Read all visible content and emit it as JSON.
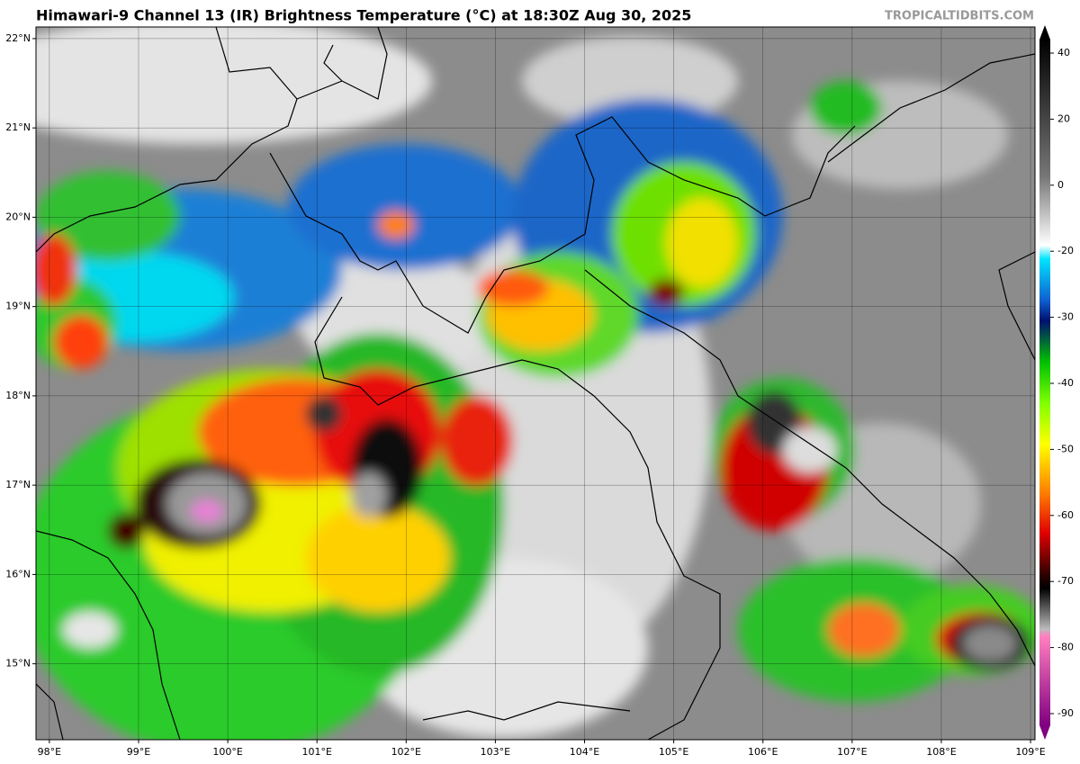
{
  "map": {
    "title": "Himawari-9 Channel 13 (IR) Brightness Temperature (°C) at 18:30Z Aug 30, 2025",
    "credit": "TROPICALTIDBITS.COM",
    "xlim": [
      97.85,
      109.05
    ],
    "ylim": [
      14.15,
      22.13
    ],
    "xticks": [
      {
        "value": 98,
        "label": "98°E"
      },
      {
        "value": 99,
        "label": "99°E"
      },
      {
        "value": 100,
        "label": "100°E"
      },
      {
        "value": 101,
        "label": "101°E"
      },
      {
        "value": 102,
        "label": "102°E"
      },
      {
        "value": 103,
        "label": "103°E"
      },
      {
        "value": 104,
        "label": "104°E"
      },
      {
        "value": 105,
        "label": "105°E"
      },
      {
        "value": 106,
        "label": "106°E"
      },
      {
        "value": 107,
        "label": "107°E"
      },
      {
        "value": 108,
        "label": "108°E"
      },
      {
        "value": 109,
        "label": "109°E"
      }
    ],
    "yticks": [
      {
        "value": 22,
        "label": "22°N"
      },
      {
        "value": 21,
        "label": "21°N"
      },
      {
        "value": 20,
        "label": "20°N"
      },
      {
        "value": 19,
        "label": "19°N"
      },
      {
        "value": 18,
        "label": "18°N"
      },
      {
        "value": 17,
        "label": "17°N"
      },
      {
        "value": 16,
        "label": "16°N"
      },
      {
        "value": 15,
        "label": "15°N"
      }
    ],
    "colorbar_ticks": [
      40,
      20,
      0,
      -20,
      -30,
      -40,
      -50,
      -60,
      -70,
      -80,
      -90
    ]
  }
}
